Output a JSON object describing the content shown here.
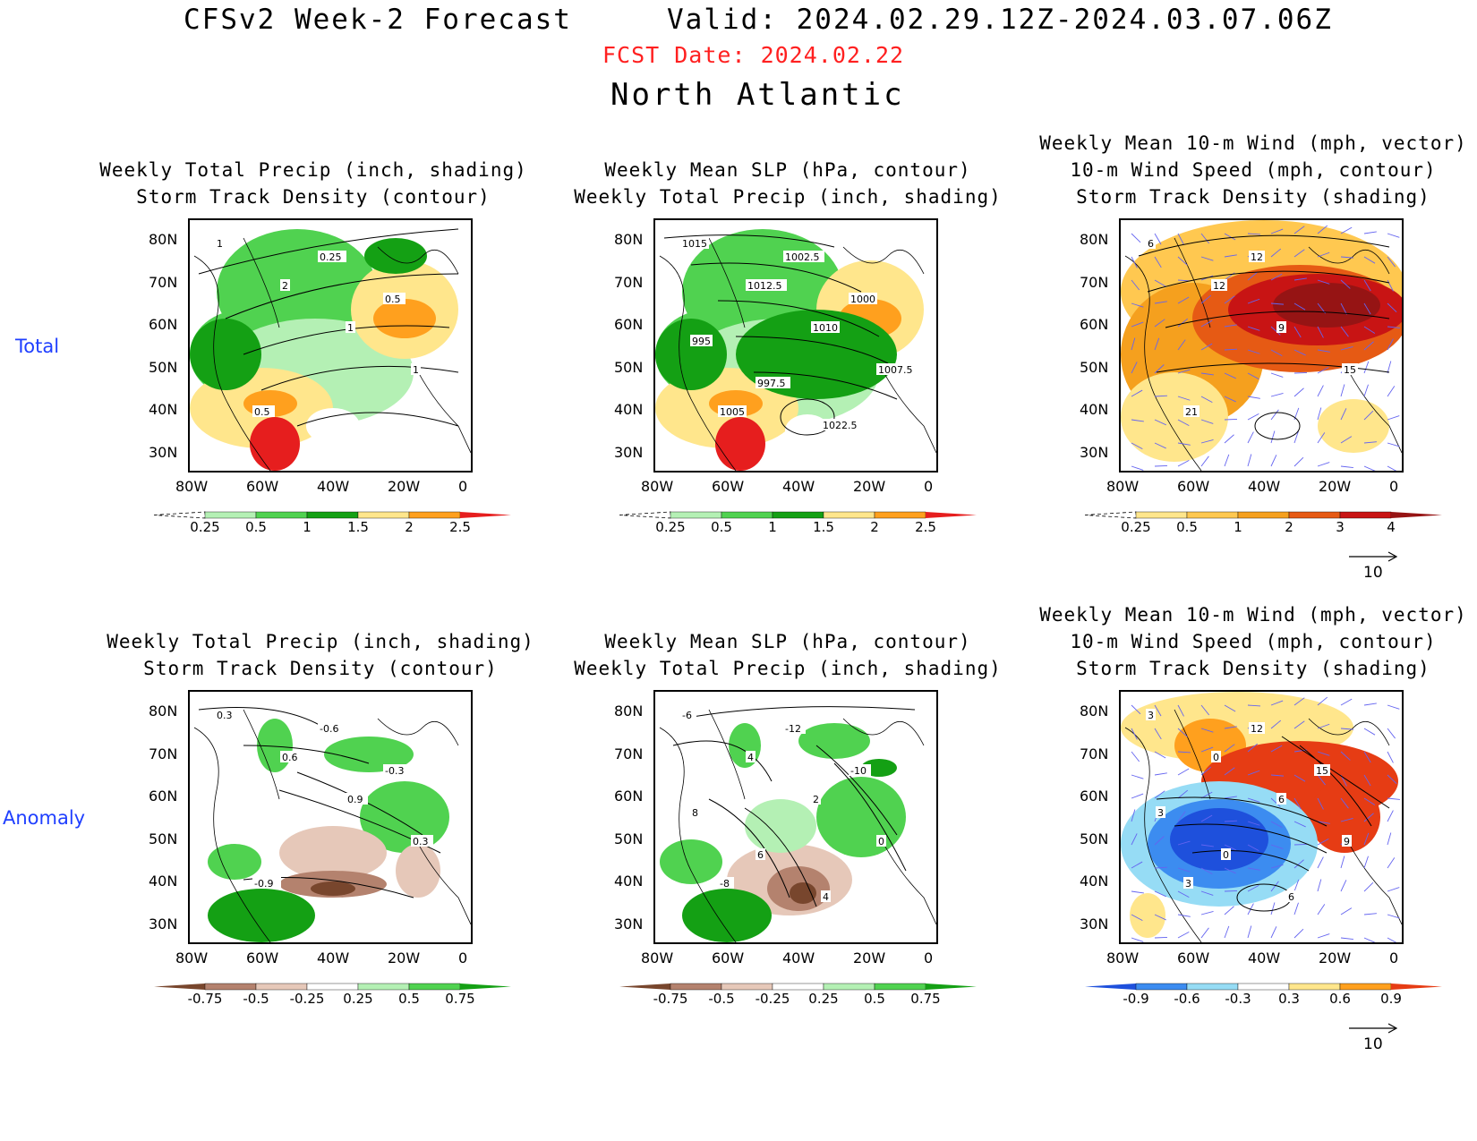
{
  "header": {
    "title": "CFSv2 Week-2 Forecast",
    "valid": "Valid: 2024.02.29.12Z-2024.03.07.06Z",
    "fcst_date": "FCST Date: 2024.02.22",
    "region": "North Atlantic"
  },
  "row_labels": [
    "Total",
    "Anomaly"
  ],
  "axes": {
    "lat_ticks": [
      "80N",
      "70N",
      "60N",
      "50N",
      "40N",
      "30N"
    ],
    "lon_ticks": [
      "80W",
      "60W",
      "40W",
      "20W",
      "0"
    ]
  },
  "panels": {
    "total_precip": {
      "title_line1": "Weekly Total Precip (inch, shading)",
      "title_line2": "Storm Track Density (contour)",
      "contour_labels": [
        "1",
        "2",
        "1",
        "1",
        "0.5",
        "0.25",
        "0.5"
      ]
    },
    "total_slp": {
      "title_line1": "Weekly Mean SLP (hPa, contour)",
      "title_line2": "Weekly Total Precip (inch, shading)",
      "contour_labels": [
        "1015",
        "1012.5",
        "1010",
        "1007.5",
        "1005",
        "1002.5",
        "1000",
        "995",
        "997.5",
        "1022.5"
      ]
    },
    "total_wind": {
      "title_line1": "Weekly Mean 10-m Wind (mph, vector)",
      "title_line2": "10-m Wind Speed (mph, contour)",
      "title_line3": "Storm Track Density (shading)",
      "contour_labels": [
        "6",
        "12",
        "9",
        "15",
        "21",
        "12"
      ]
    },
    "anom_precip": {
      "title_line1": "Weekly Total Precip (inch, shading)",
      "title_line2": "Storm Track Density (contour)",
      "contour_labels": [
        "0.3",
        "0.6",
        "0.9",
        "0.3",
        "-0.9",
        "-0.6",
        "-0.3"
      ]
    },
    "anom_slp": {
      "title_line1": "Weekly Mean SLP (hPa, contour)",
      "title_line2": "Weekly Total Precip (inch, shading)",
      "contour_labels": [
        "-6",
        "4",
        "2",
        "0",
        "-8",
        "-12",
        "-10",
        "8",
        "6",
        "4"
      ]
    },
    "anom_wind": {
      "title_line1": "Weekly Mean 10-m Wind (mph, vector)",
      "title_line2": "10-m Wind Speed (mph, contour)",
      "title_line3": "Storm Track Density (shading)",
      "contour_labels": [
        "3",
        "0",
        "6",
        "9",
        "3",
        "12",
        "15",
        "3",
        "0",
        "6"
      ]
    }
  },
  "colorbars": {
    "precip_total": {
      "labels": [
        "0.25",
        "0.5",
        "1",
        "1.5",
        "2",
        "2.5"
      ],
      "colors": [
        "#ffffff",
        "#b4f0b4",
        "#50d250",
        "#14a014",
        "#ffe68c",
        "#ffa01e",
        "#e61e1e"
      ]
    },
    "storm_total": {
      "labels": [
        "0.25",
        "0.5",
        "1",
        "2",
        "3",
        "4"
      ],
      "colors": [
        "#ffffff",
        "#ffe68c",
        "#ffc850",
        "#f5a01e",
        "#e65a14",
        "#c81414",
        "#961414"
      ]
    },
    "precip_anom": {
      "labels": [
        "-0.75",
        "-0.5",
        "-0.25",
        "0.25",
        "0.5",
        "0.75"
      ],
      "colors": [
        "#78462d",
        "#b4826e",
        "#e6c8b9",
        "#ffffff",
        "#b4f0b4",
        "#50d250",
        "#14a014"
      ]
    },
    "storm_anom": {
      "labels": [
        "-0.9",
        "-0.6",
        "-0.3",
        "0.3",
        "0.6",
        "0.9"
      ],
      "colors": [
        "#1e50dc",
        "#3c8cf0",
        "#96dcf5",
        "#ffffff",
        "#ffe68c",
        "#ffa01e",
        "#e63c14"
      ]
    }
  },
  "vector_key": {
    "label": "10"
  },
  "colors": {
    "fcst_red": "#ff2020",
    "row_label_blue": "#1f3fff",
    "vector_blue": "#6464f0"
  }
}
